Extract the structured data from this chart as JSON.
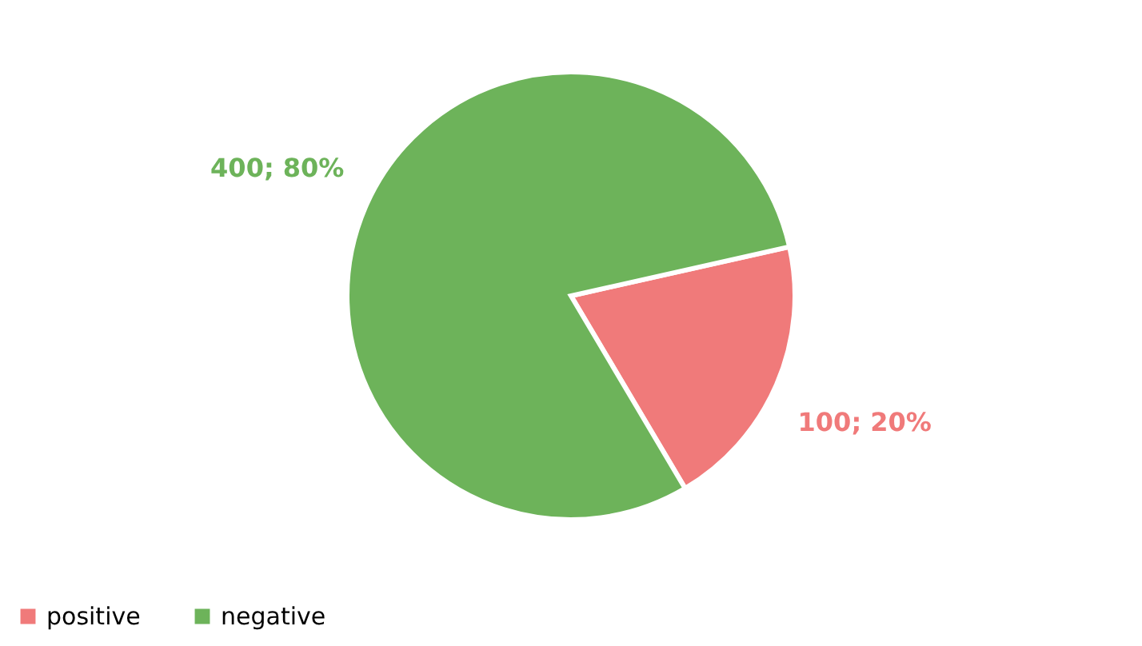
{
  "chart_data": {
    "type": "pie",
    "categories": [
      "positive",
      "negative"
    ],
    "values": [
      100,
      400
    ],
    "colors": [
      "#f07a7a",
      "#6db35a"
    ],
    "value_labels": [
      "100; 20%",
      "400; 80%"
    ],
    "legend": "bottom"
  }
}
